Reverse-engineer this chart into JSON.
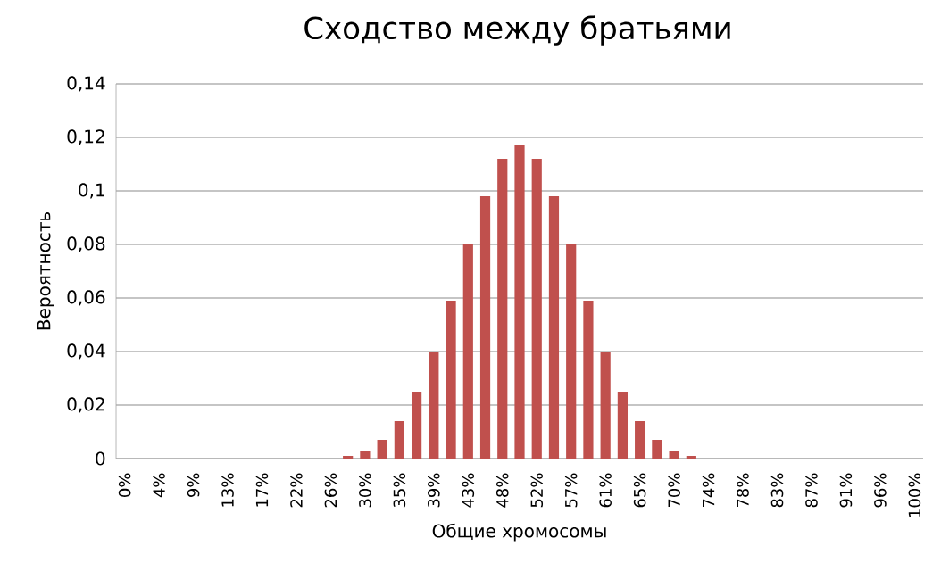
{
  "chart_data": {
    "type": "bar",
    "title": "Сходство между братьями",
    "xlabel": "Общие хромосомы",
    "ylabel": "Вероятность",
    "categories": [
      "0%",
      null,
      "4%",
      null,
      "9%",
      null,
      "13%",
      null,
      "17%",
      null,
      "22%",
      null,
      "26%",
      null,
      "30%",
      null,
      "35%",
      null,
      "39%",
      null,
      "43%",
      null,
      "48%",
      null,
      "52%",
      null,
      "57%",
      null,
      "61%",
      null,
      "65%",
      null,
      "70%",
      null,
      "74%",
      null,
      "78%",
      null,
      "83%",
      null,
      "87%",
      null,
      "91%",
      null,
      "96%",
      null,
      "100%"
    ],
    "values": [
      0,
      0,
      0,
      0,
      0,
      0,
      0,
      0,
      0,
      0,
      0,
      0,
      0,
      0.001,
      0.003,
      0.007,
      0.014,
      0.025,
      0.04,
      0.059,
      0.08,
      0.098,
      0.112,
      0.117,
      0.112,
      0.098,
      0.08,
      0.059,
      0.04,
      0.025,
      0.014,
      0.007,
      0.003,
      0.001,
      0,
      0,
      0,
      0,
      0,
      0,
      0,
      0,
      0,
      0,
      0,
      0,
      0
    ],
    "color": "#c0504d",
    "ylim": [
      0,
      0.14
    ],
    "yticks": [
      {
        "value": 0,
        "label": "0"
      },
      {
        "value": 0.02,
        "label": "0,02"
      },
      {
        "value": 0.04,
        "label": "0,04"
      },
      {
        "value": 0.06,
        "label": "0,06"
      },
      {
        "value": 0.08,
        "label": "0,08"
      },
      {
        "value": 0.1,
        "label": "0,1"
      },
      {
        "value": 0.12,
        "label": "0,12"
      },
      {
        "value": 0.14,
        "label": "0,14"
      }
    ],
    "grid": "y"
  }
}
